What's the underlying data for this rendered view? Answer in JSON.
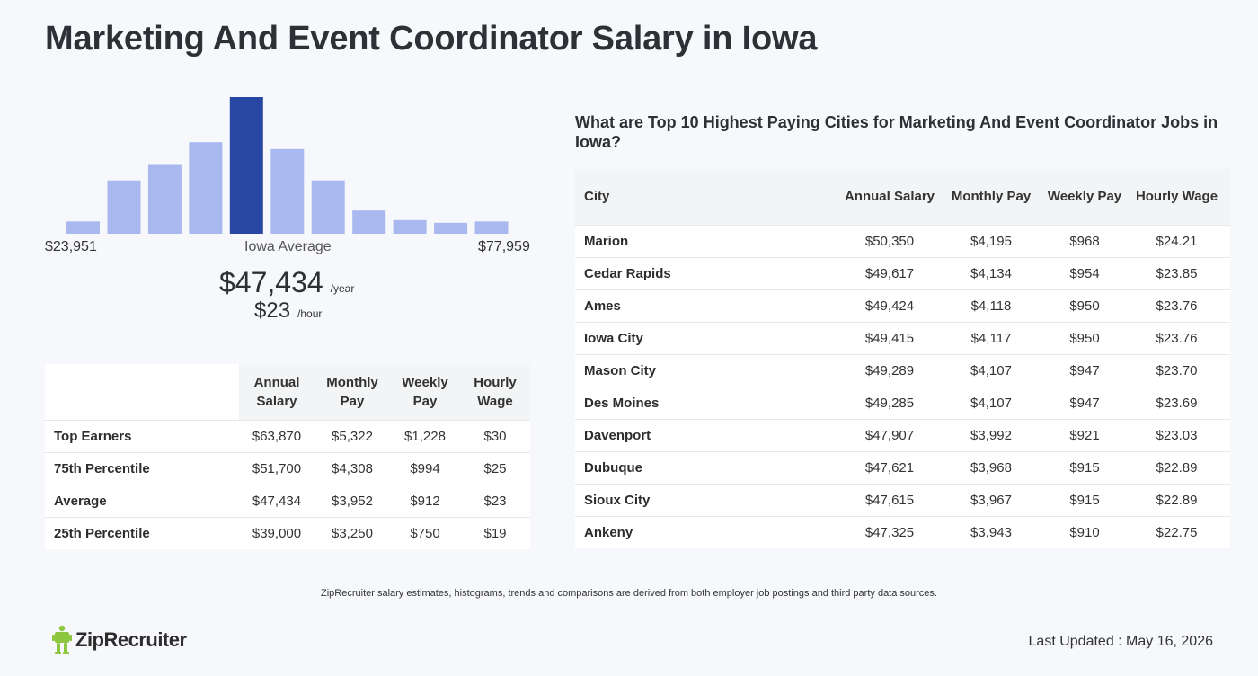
{
  "page_title": "Marketing And Event Coordinator Salary in Iowa",
  "chart_data": {
    "type": "bar",
    "title": "",
    "categories": [
      "1",
      "2",
      "3",
      "4",
      "5",
      "6",
      "7",
      "8",
      "9",
      "10",
      "11"
    ],
    "values": [
      9,
      39,
      51,
      67,
      100,
      62,
      39,
      17,
      10,
      8,
      9
    ],
    "highlight_index": 4,
    "ylim": [
      0,
      100
    ],
    "grid": false,
    "colors": {
      "bar": "#a9b8ef",
      "highlight": "#2747a3"
    }
  },
  "histogram": {
    "min_label": "$23,951",
    "max_label": "$77,959",
    "avg_label": "Iowa Average",
    "avg_year": "$47,434",
    "year_unit": "/year",
    "avg_hour": "$23",
    "hour_unit": "/hour"
  },
  "percentile_table": {
    "headers": [
      "Annual Salary",
      "Monthly Pay",
      "Weekly Pay",
      "Hourly Wage"
    ],
    "rows": [
      {
        "label": "Top Earners",
        "values": [
          "$63,870",
          "$5,322",
          "$1,228",
          "$30"
        ]
      },
      {
        "label": "75th Percentile",
        "values": [
          "$51,700",
          "$4,308",
          "$994",
          "$25"
        ]
      },
      {
        "label": "Average",
        "values": [
          "$47,434",
          "$3,952",
          "$912",
          "$23"
        ]
      },
      {
        "label": "25th Percentile",
        "values": [
          "$39,000",
          "$3,250",
          "$750",
          "$19"
        ]
      }
    ]
  },
  "cities_section": {
    "heading": "What are Top 10 Highest Paying Cities for Marketing And Event Coordinator Jobs in Iowa?",
    "headers": [
      "City",
      "Annual Salary",
      "Monthly Pay",
      "Weekly Pay",
      "Hourly Wage"
    ],
    "rows": [
      {
        "city": "Marion",
        "values": [
          "$50,350",
          "$4,195",
          "$968",
          "$24.21"
        ]
      },
      {
        "city": "Cedar Rapids",
        "values": [
          "$49,617",
          "$4,134",
          "$954",
          "$23.85"
        ]
      },
      {
        "city": "Ames",
        "values": [
          "$49,424",
          "$4,118",
          "$950",
          "$23.76"
        ]
      },
      {
        "city": "Iowa City",
        "values": [
          "$49,415",
          "$4,117",
          "$950",
          "$23.76"
        ]
      },
      {
        "city": "Mason City",
        "values": [
          "$49,289",
          "$4,107",
          "$947",
          "$23.70"
        ]
      },
      {
        "city": "Des Moines",
        "values": [
          "$49,285",
          "$4,107",
          "$947",
          "$23.69"
        ]
      },
      {
        "city": "Davenport",
        "values": [
          "$47,907",
          "$3,992",
          "$921",
          "$23.03"
        ]
      },
      {
        "city": "Dubuque",
        "values": [
          "$47,621",
          "$3,968",
          "$915",
          "$22.89"
        ]
      },
      {
        "city": "Sioux City",
        "values": [
          "$47,615",
          "$3,967",
          "$915",
          "$22.89"
        ]
      },
      {
        "city": "Ankeny",
        "values": [
          "$47,325",
          "$3,943",
          "$910",
          "$22.75"
        ]
      }
    ]
  },
  "footnote": "ZipRecruiter salary estimates, histograms, trends and comparisons are derived from both employer job postings and third party data sources.",
  "brand": {
    "name": "ZipRecruiter",
    "color": "#8dc63f",
    "icon": "zip-mascot-icon"
  },
  "last_updated": "Last Updated : May 16, 2026"
}
